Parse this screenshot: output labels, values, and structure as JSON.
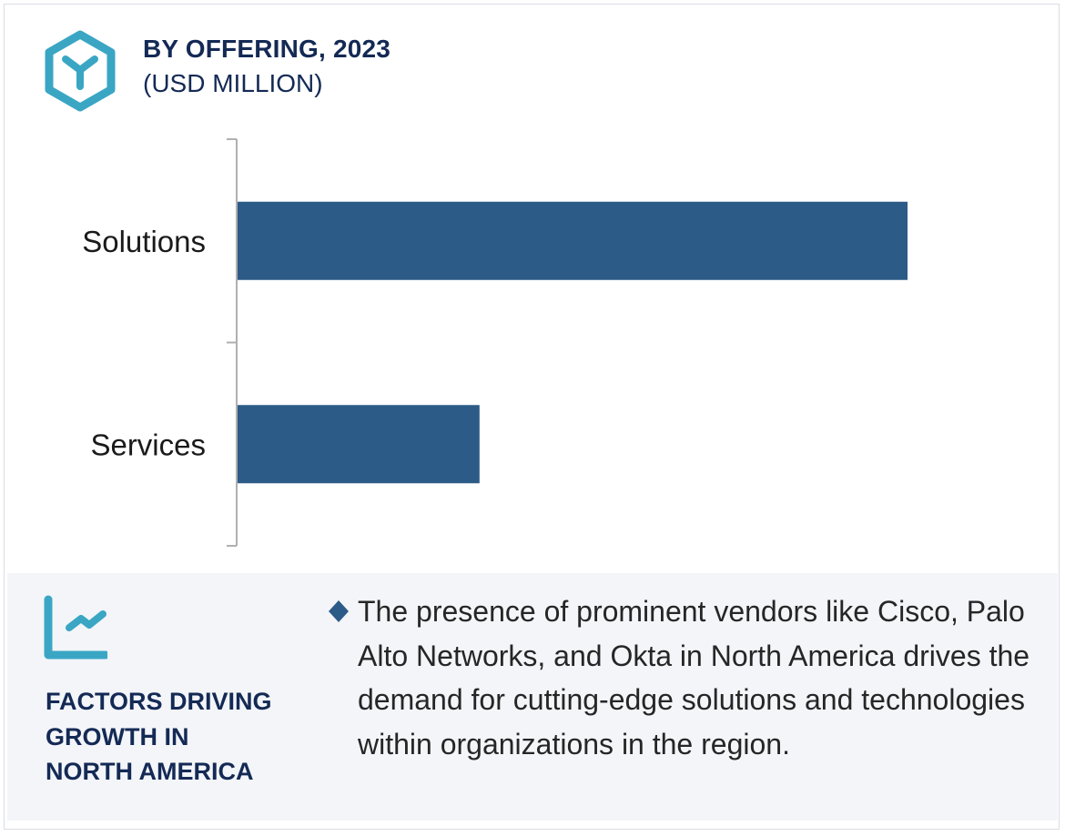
{
  "header": {
    "icon": "hexagon-cube-icon",
    "title": "BY OFFERING, 2023",
    "subtitle": "(USD MILLION)"
  },
  "colors": {
    "bar": "#2d5b87",
    "title": "#142a55",
    "icon_accent": "#3aa6c4",
    "panel_bg": "#f3f5f9",
    "axis": "#b0b0b0"
  },
  "chart_data": {
    "type": "bar",
    "orientation": "horizontal",
    "title": "BY OFFERING, 2023",
    "subtitle": "(USD MILLION)",
    "categories": [
      "Solutions",
      "Services"
    ],
    "values": [
      100,
      36.2
    ],
    "value_note": "No values printed; relative bar lengths (Solutions indexed to 100)",
    "xlabel": "",
    "ylabel": "",
    "xlim": [
      0,
      100
    ],
    "grid": false,
    "legend": "none"
  },
  "panel": {
    "icon": "trend-line-chart-icon",
    "heading_lines": [
      "FACTORS DRIVING",
      "GROWTH IN",
      "NORTH AMERICA"
    ],
    "bullet_icon": "diamond-bullet-icon",
    "description": "The presence of prominent vendors like Cisco, Palo Alto Networks, and Okta in North America drives the demand for cutting-edge solutions and technologies within organizations in the region."
  }
}
